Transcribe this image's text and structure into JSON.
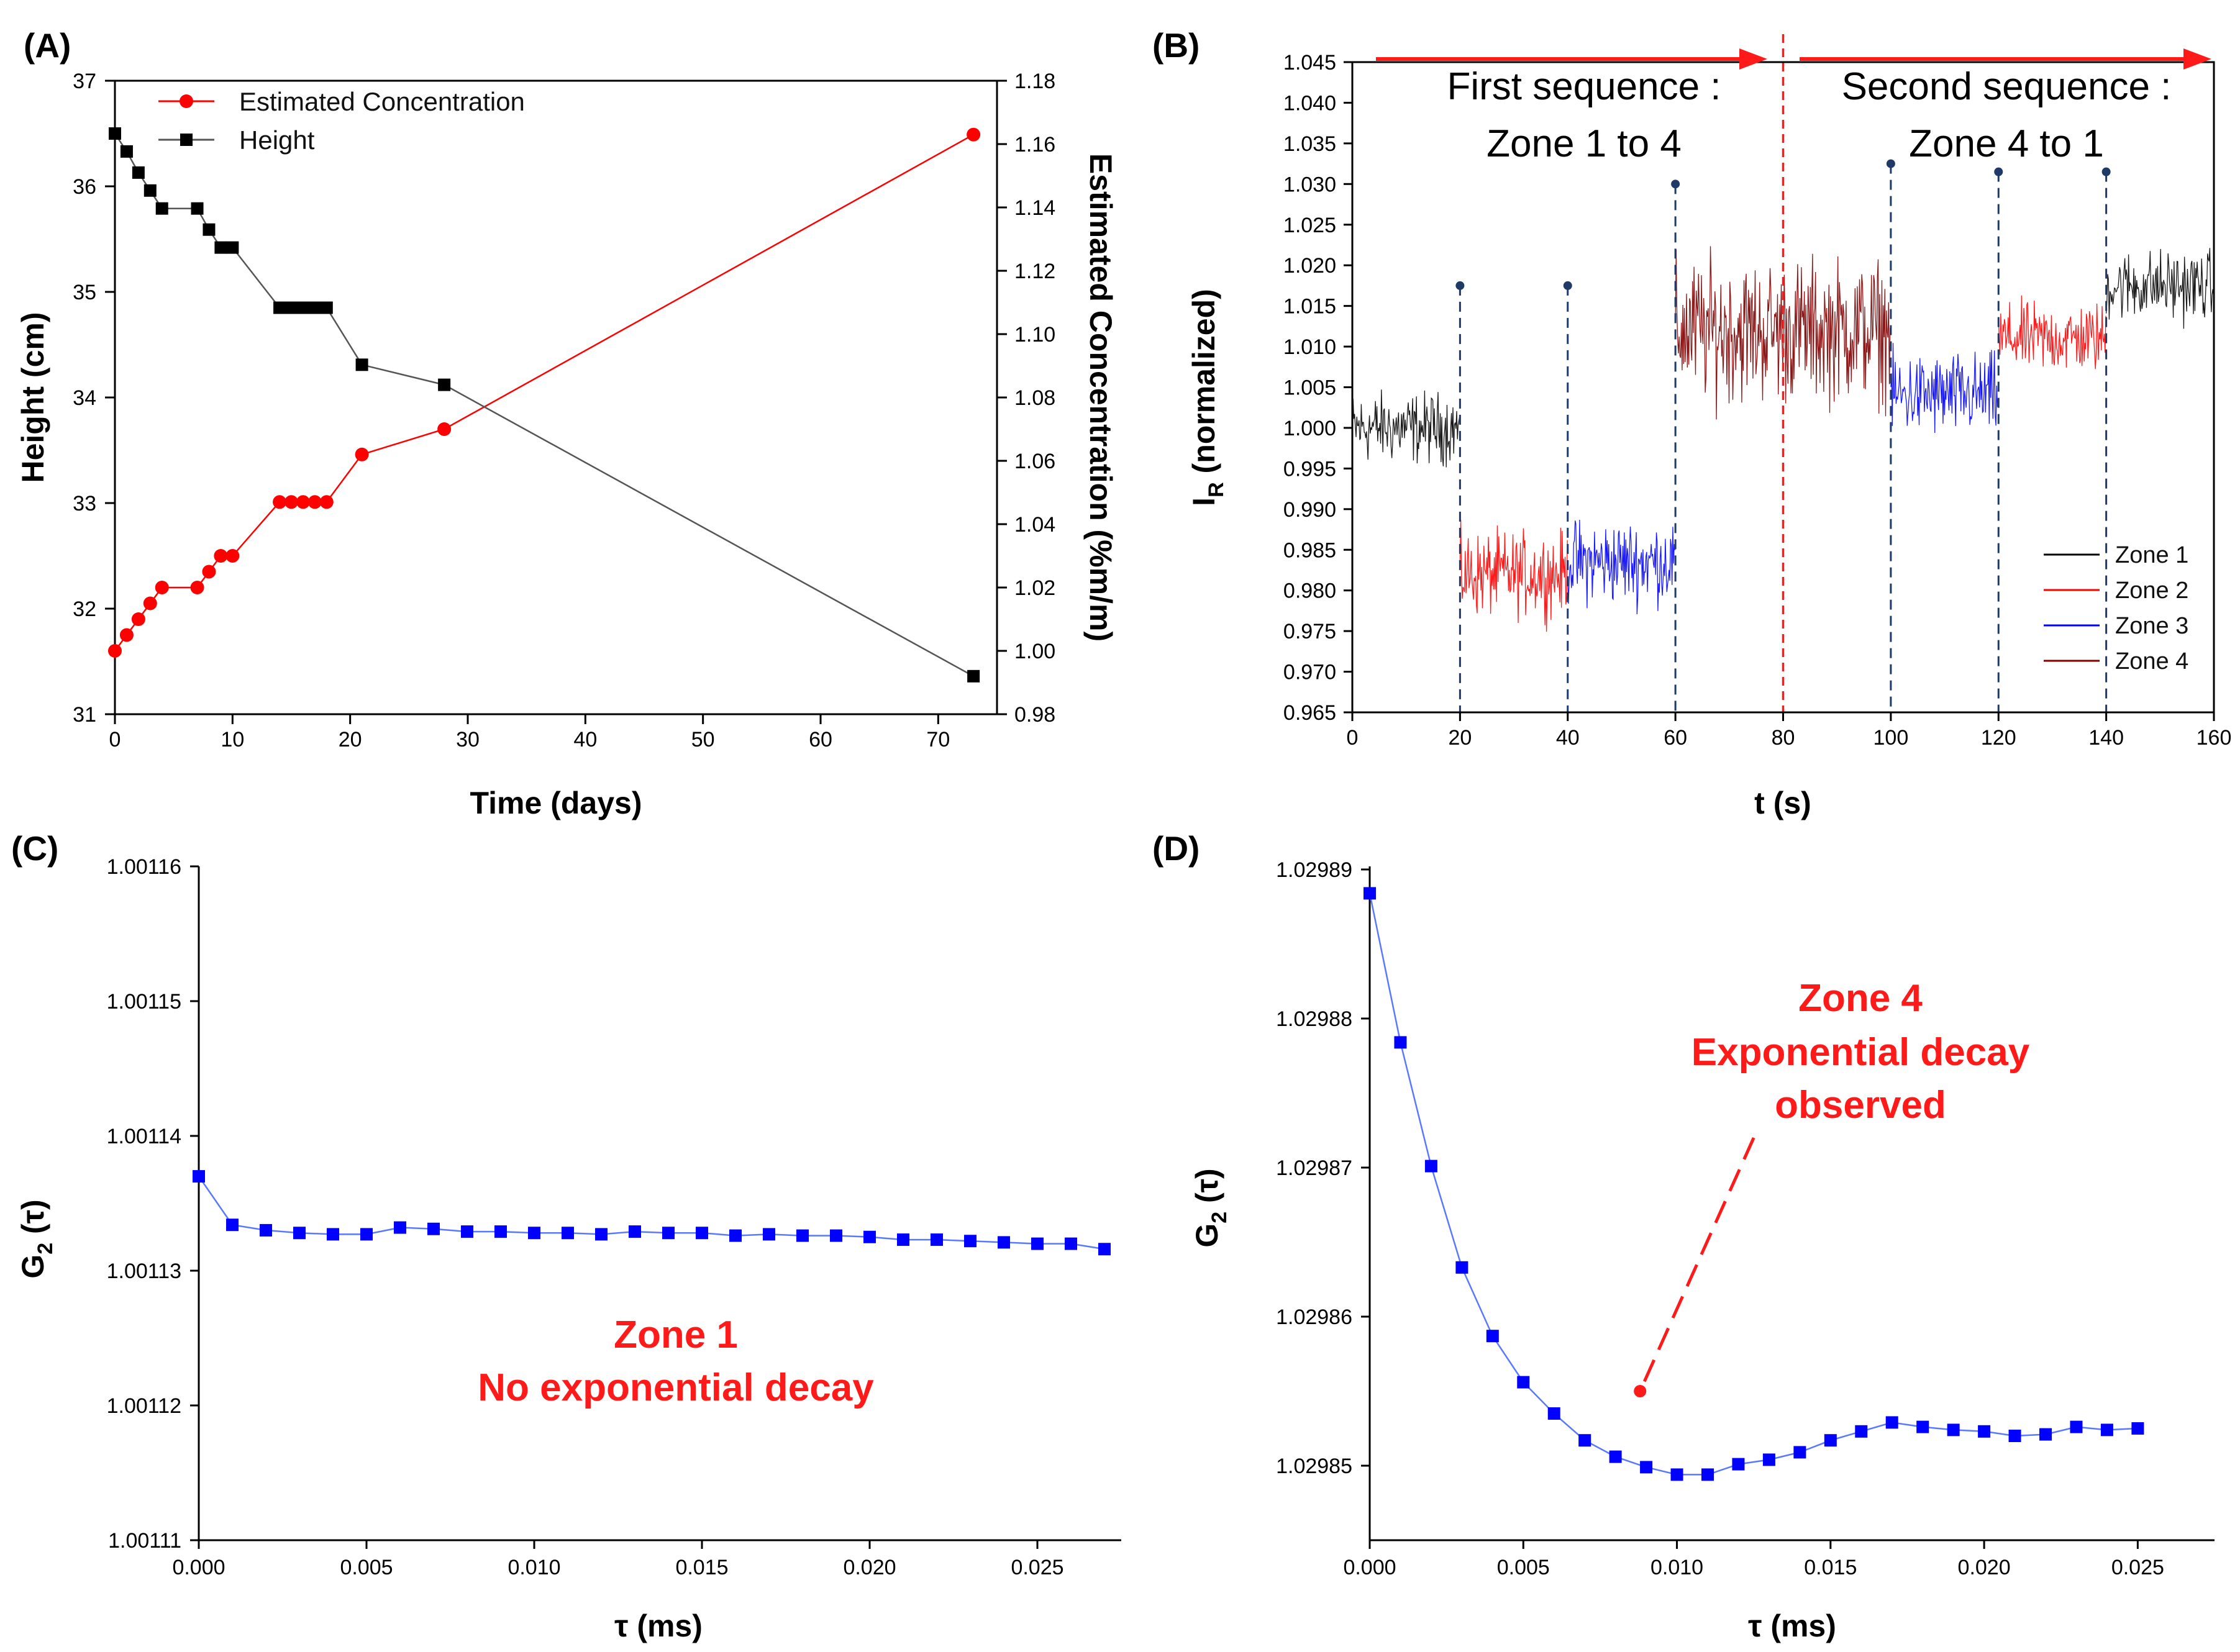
{
  "chart_data": [
    {
      "panel": "(A)",
      "type": "line",
      "xlabel": "Time (days)",
      "ylabel": "Height (cm)",
      "ylabel_right": "Estimated Concentration (%m/m)",
      "xlim": [
        0,
        75
      ],
      "ylim": [
        31,
        37
      ],
      "ylim_right": [
        0.98,
        1.18
      ],
      "xticks": [
        "0",
        "10",
        "20",
        "30",
        "40",
        "50",
        "60",
        "70"
      ],
      "yticks": [
        "31",
        "32",
        "33",
        "34",
        "35",
        "36",
        "37"
      ],
      "yticks_right": [
        "0.98",
        "1.00",
        "1.02",
        "1.04",
        "1.06",
        "1.08",
        "1.10",
        "1.12",
        "1.14",
        "1.16",
        "1.18"
      ],
      "legend_position": "top-left",
      "series": [
        {
          "name": "Estimated Concentration",
          "axis": "right",
          "color": "#ff0000",
          "marker": "circle",
          "x": [
            0,
            1,
            2,
            3,
            4,
            7,
            8,
            9,
            10,
            14,
            15,
            16,
            17,
            18,
            21,
            28,
            73
          ],
          "y": [
            1.0,
            1.005,
            1.01,
            1.015,
            1.02,
            1.02,
            1.025,
            1.03,
            1.03,
            1.047,
            1.047,
            1.047,
            1.047,
            1.047,
            1.062,
            1.07,
            1.163
          ]
        },
        {
          "name": "Height",
          "axis": "left",
          "color": "#000000",
          "marker": "square",
          "x": [
            0,
            1,
            2,
            3,
            4,
            7,
            8,
            9,
            10,
            14,
            15,
            16,
            17,
            18,
            21,
            28,
            73
          ],
          "y": [
            36.5,
            36.33,
            36.13,
            35.96,
            35.79,
            35.79,
            35.59,
            35.42,
            35.42,
            34.85,
            34.85,
            34.85,
            34.85,
            34.85,
            34.31,
            34.12,
            31.36
          ]
        }
      ]
    },
    {
      "panel": "(B)",
      "type": "line",
      "xlabel": "t (s)",
      "ylabel": "I",
      "ylabel_sub": "R",
      "ylabel_rest": " (normalized)",
      "xlim": [
        0,
        160
      ],
      "ylim": [
        0.965,
        1.045
      ],
      "xticks": [
        "0",
        "20",
        "40",
        "60",
        "80",
        "100",
        "120",
        "140",
        "160"
      ],
      "yticks": [
        "0.965",
        "0.970",
        "0.975",
        "0.980",
        "0.985",
        "0.990",
        "0.995",
        "1.000",
        "1.005",
        "1.010",
        "1.015",
        "1.020",
        "1.025",
        "1.030",
        "1.035",
        "1.040",
        "1.045"
      ],
      "legend_position": "bottom-right",
      "legend": [
        {
          "name": "Zone 1",
          "color": "#000000"
        },
        {
          "name": "Zone 2",
          "color": "#ff0000"
        },
        {
          "name": "Zone 3",
          "color": "#0000ff"
        },
        {
          "name": "Zone 4",
          "color": "#800000"
        }
      ],
      "segments": [
        {
          "zone": 1,
          "t0": 0,
          "t1": 20,
          "mean": 1.0,
          "spread": 0.0055
        },
        {
          "zone": 2,
          "t0": 20,
          "t1": 40,
          "mean": 0.982,
          "spread": 0.0065
        },
        {
          "zone": 3,
          "t0": 40,
          "t1": 60,
          "mean": 0.9835,
          "spread": 0.0065
        },
        {
          "zone": 4,
          "t0": 60,
          "t1": 100,
          "mean": 1.012,
          "spread": 0.011
        },
        {
          "zone": 3,
          "t0": 100,
          "t1": 120,
          "mean": 1.004,
          "spread": 0.0065
        },
        {
          "zone": 2,
          "t0": 120,
          "t1": 140,
          "mean": 1.011,
          "spread": 0.0055
        },
        {
          "zone": 1,
          "t0": 140,
          "t1": 160,
          "mean": 1.0175,
          "spread": 0.0055
        }
      ],
      "markers": [
        {
          "t": 20,
          "y": 1.0175
        },
        {
          "t": 40,
          "y": 1.0175
        },
        {
          "t": 60,
          "y": 1.03
        },
        {
          "t": 100,
          "y": 1.0325
        },
        {
          "t": 120,
          "y": 1.0315
        },
        {
          "t": 140,
          "y": 1.0315
        }
      ],
      "divider_t": 80,
      "annotations": {
        "first_line1": "First sequence :",
        "first_line2": "Zone 1 to 4",
        "second_line1": "Second sequence :",
        "second_line2": "Zone 4 to 1"
      }
    },
    {
      "panel": "(C)",
      "type": "line",
      "xlabel": "τ (ms)",
      "ylabel": "G",
      "ylabel_sub": "2",
      "ylabel_rest": " (τ)",
      "xlim": [
        0,
        0.0275
      ],
      "ylim": [
        1.00111,
        1.00116
      ],
      "xticks": [
        "0.000",
        "0.005",
        "0.010",
        "0.015",
        "0.020",
        "0.025"
      ],
      "yticks": [
        "1.00111",
        "1.00112",
        "1.00113",
        "1.00114",
        "1.00115",
        "1.00116"
      ],
      "series": [
        {
          "color": "#0000ff",
          "marker": "square",
          "x": [
            0,
            0.001,
            0.002,
            0.003,
            0.004,
            0.005,
            0.006,
            0.007,
            0.008,
            0.009,
            0.01,
            0.011,
            0.012,
            0.013,
            0.014,
            0.015,
            0.016,
            0.017,
            0.018,
            0.019,
            0.02,
            0.021,
            0.022,
            0.023,
            0.024,
            0.025,
            0.026,
            0.027
          ],
          "y": [
            1.001137,
            1.0011334,
            1.001133,
            1.0011328,
            1.0011327,
            1.0011327,
            1.0011332,
            1.0011331,
            1.0011329,
            1.0011329,
            1.0011328,
            1.0011328,
            1.0011327,
            1.0011329,
            1.0011328,
            1.0011328,
            1.0011326,
            1.0011327,
            1.0011326,
            1.0011326,
            1.0011325,
            1.0011323,
            1.0011323,
            1.0011322,
            1.0011321,
            1.001132,
            1.001132,
            1.0011316
          ]
        }
      ],
      "annotations": {
        "line1": "Zone 1",
        "line2": "No exponential decay"
      }
    },
    {
      "panel": "(D)",
      "type": "line",
      "xlabel": "τ (ms)",
      "ylabel": "G",
      "ylabel_sub": "2",
      "ylabel_rest": " (τ)",
      "xlim": [
        0,
        0.0275
      ],
      "ylim": [
        1.029845,
        1.02989
      ],
      "xticks": [
        "0.000",
        "0.005",
        "0.010",
        "0.015",
        "0.020",
        "0.025"
      ],
      "yticks": [
        "1.02985",
        "1.02986",
        "1.02987",
        "1.02988",
        "1.02989"
      ],
      "series": [
        {
          "color": "#0000ff",
          "marker": "square",
          "x": [
            0,
            0.001,
            0.002,
            0.003,
            0.004,
            0.005,
            0.006,
            0.007,
            0.008,
            0.009,
            0.01,
            0.011,
            0.012,
            0.013,
            0.014,
            0.015,
            0.016,
            0.017,
            0.018,
            0.019,
            0.02,
            0.021,
            0.022,
            0.023,
            0.024,
            0.025
          ],
          "y": [
            1.0298884,
            1.0298784,
            1.0298701,
            1.0298633,
            1.0298587,
            1.0298556,
            1.0298535,
            1.0298517,
            1.0298506,
            1.0298499,
            1.0298494,
            1.0298494,
            1.0298501,
            1.0298504,
            1.0298509,
            1.0298517,
            1.0298523,
            1.0298529,
            1.0298526,
            1.0298524,
            1.0298523,
            1.029852,
            1.0298521,
            1.0298526,
            1.0298524,
            1.0298525
          ]
        }
      ],
      "annotations": {
        "line1": "Zone 4",
        "line2": "Exponential decay",
        "line3": "observed",
        "pointer_from": {
          "x": 0.0125,
          "y": 1.029872
        },
        "pointer_to": {
          "x": 0.0088,
          "y": 1.029855
        }
      }
    }
  ]
}
